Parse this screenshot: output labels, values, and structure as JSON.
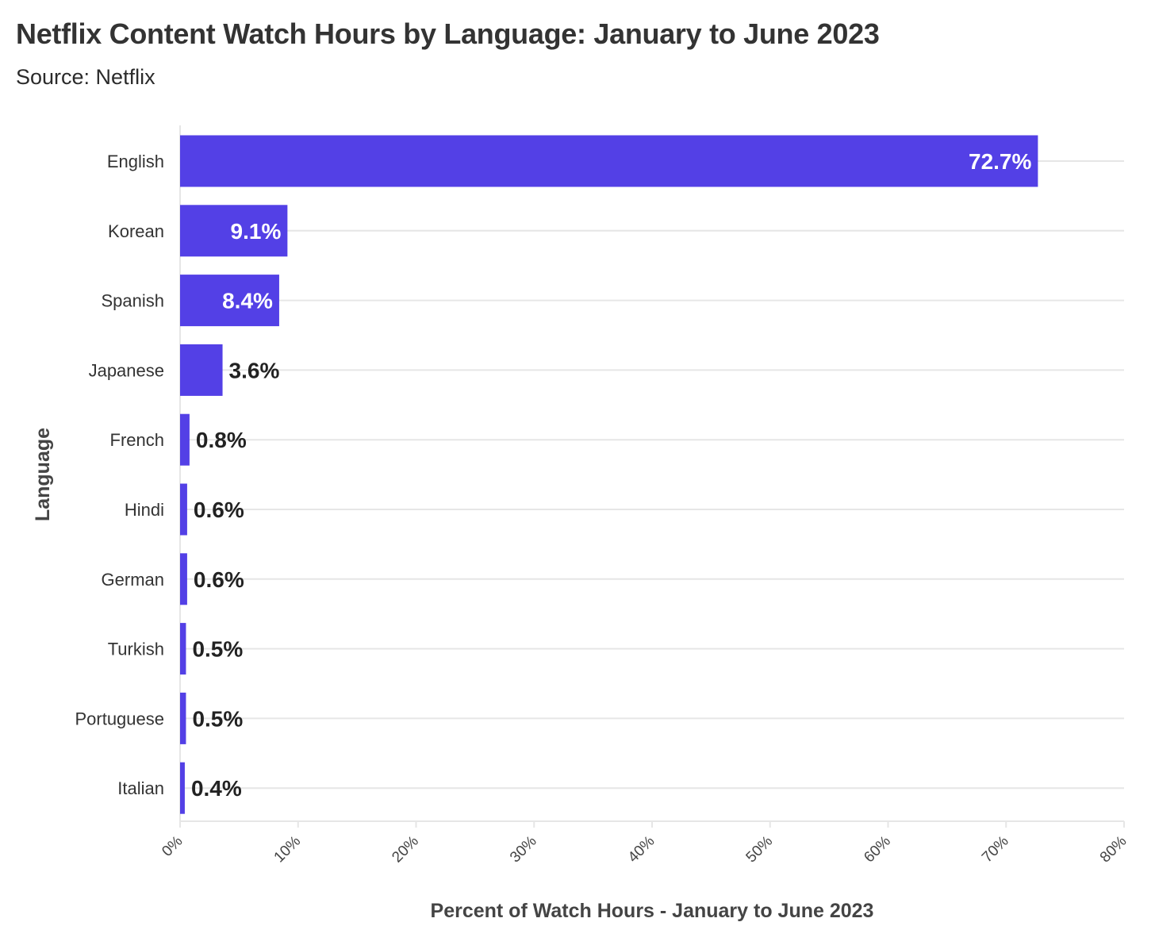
{
  "chart_data": {
    "type": "bar",
    "orientation": "horizontal",
    "title": "Netflix Content Watch Hours by Language: January to June 2023",
    "subtitle": "Source: Netflix",
    "xlabel": "Percent of Watch Hours - January to June 2023",
    "ylabel": "Language",
    "categories": [
      "English",
      "Korean",
      "Spanish",
      "Japanese",
      "French",
      "Hindi",
      "German",
      "Turkish",
      "Portuguese",
      "Italian"
    ],
    "values": [
      72.7,
      9.1,
      8.4,
      3.6,
      0.8,
      0.6,
      0.6,
      0.5,
      0.5,
      0.4
    ],
    "value_labels": [
      "72.7%",
      "9.1%",
      "8.4%",
      "3.6%",
      "0.8%",
      "0.6%",
      "0.6%",
      "0.5%",
      "0.5%",
      "0.4%"
    ],
    "xlim": [
      0,
      80
    ],
    "xticks": [
      0,
      10,
      20,
      30,
      40,
      50,
      60,
      70,
      80
    ],
    "xtick_labels": [
      "0%",
      "10%",
      "20%",
      "30%",
      "40%",
      "50%",
      "60%",
      "70%",
      "80%"
    ],
    "grid": true,
    "legend": "none",
    "colors": {
      "bar": "#5340e6",
      "grid": "#e6e6e6",
      "label_inside": "#ffffff",
      "label_outside": "#222222"
    }
  }
}
